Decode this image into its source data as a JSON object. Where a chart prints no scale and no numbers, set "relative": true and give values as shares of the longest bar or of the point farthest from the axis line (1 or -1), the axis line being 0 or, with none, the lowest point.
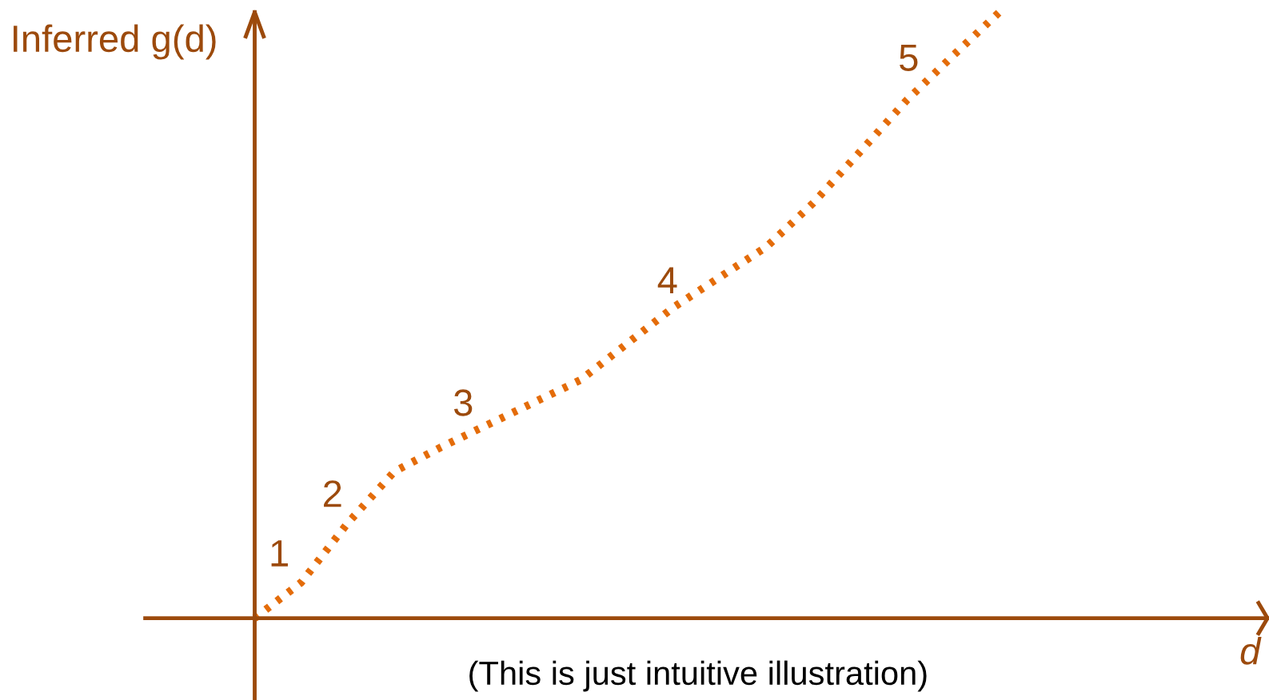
{
  "chart_data": {
    "type": "line",
    "relative": true,
    "ylabel": "Inferred g(d)",
    "line_style": "dotted",
    "marker": "none",
    "legend": false,
    "categories": [
      null,
      null,
      null,
      null,
      null,
      null,
      null,
      null,
      null,
      null,
      null,
      null,
      null,
      null,
      null,
      null,
      null
    ],
    "series": [
      {
        "color": "#e46c0a",
        "values": [
          0,
          0.059,
          0.157,
          0.242,
          0.282,
          0.319,
          0.356,
          0.393,
          0.453,
          0.513,
          0.563,
          0.613,
          0.685,
          0.769,
          0.854,
          0.928,
          1.0
        ]
      }
    ],
    "annotations": [
      "1",
      "2",
      "3",
      "4",
      "5",
      "d",
      "(This is just intuitive illustration)"
    ]
  }
}
